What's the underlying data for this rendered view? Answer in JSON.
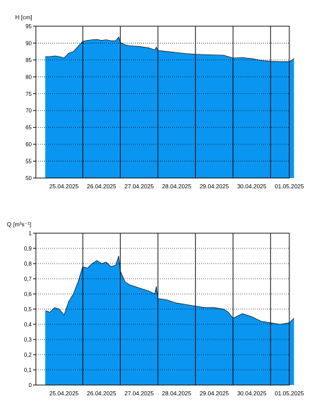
{
  "chart_data": [
    {
      "type": "area",
      "ylabel": "H [cm]",
      "ylim": [
        50,
        95
      ],
      "yticks": [
        50,
        55,
        60,
        65,
        70,
        75,
        80,
        85,
        90,
        95
      ],
      "ytick_labels": [
        "50",
        "55",
        "60",
        "65",
        "70",
        "75",
        "80",
        "85",
        "90",
        "95"
      ],
      "xlim": [
        "2025-04-24T18:00",
        "2025-05-01T12:00"
      ],
      "day_lines": [
        "2025-04-26",
        "2025-04-27",
        "2025-04-28",
        "2025-04-29",
        "2025-04-30",
        "2025-05-01"
      ],
      "xtick_labels": [
        "25.04.2025",
        "26.04.2025",
        "27.04.2025",
        "28.04.2025",
        "29.04.2025",
        "30.04.2025",
        "01.05.2025"
      ],
      "xtick_positions": [
        "2025-04-25T12:00",
        "2025-04-26T12:00",
        "2025-04-27T12:00",
        "2025-04-28T12:00",
        "2025-04-29T12:00",
        "2025-04-30T12:00",
        "2025-05-01T12:00"
      ],
      "grid": "horizontal dotted",
      "fill_color": "#0a96f0",
      "series": [
        {
          "x": [
            "2025-04-25T00:00",
            "2025-04-25T03:00",
            "2025-04-25T06:00",
            "2025-04-25T09:00",
            "2025-04-25T12:00",
            "2025-04-25T15:00",
            "2025-04-25T18:00",
            "2025-04-25T21:00",
            "2025-04-26T00:00",
            "2025-04-26T03:00",
            "2025-04-26T06:00",
            "2025-04-26T09:00",
            "2025-04-26T12:00",
            "2025-04-26T15:00",
            "2025-04-26T18:00",
            "2025-04-26T21:00",
            "2025-04-26T23:00",
            "2025-04-27T00:00",
            "2025-04-27T03:00",
            "2025-04-27T06:00",
            "2025-04-27T12:00",
            "2025-04-27T18:00",
            "2025-04-27T22:00",
            "2025-04-27T23:00",
            "2025-04-28T00:00",
            "2025-04-28T06:00",
            "2025-04-28T12:00",
            "2025-04-28T18:00",
            "2025-04-29T00:00",
            "2025-04-29T06:00",
            "2025-04-29T12:00",
            "2025-04-29T18:00",
            "2025-04-30T00:00",
            "2025-04-30T06:00",
            "2025-04-30T12:00",
            "2025-04-30T18:00",
            "2025-05-01T00:00",
            "2025-05-01T06:00",
            "2025-05-01T12:00",
            "2025-05-01T15:00"
          ],
          "y": [
            86.0,
            86.0,
            86.2,
            86.0,
            85.6,
            87.0,
            87.5,
            89.0,
            90.5,
            90.8,
            91.0,
            91.1,
            90.8,
            91.0,
            90.7,
            90.7,
            91.8,
            90.2,
            89.5,
            89.2,
            89.0,
            88.6,
            88.0,
            88.8,
            87.8,
            87.5,
            87.2,
            86.9,
            86.7,
            86.6,
            86.5,
            86.4,
            85.6,
            85.7,
            85.4,
            84.9,
            84.6,
            84.5,
            84.5,
            85.4
          ]
        }
      ]
    },
    {
      "type": "area",
      "ylabel": "Q [m³s⁻¹]",
      "ylim": [
        0,
        1
      ],
      "yticks": [
        0,
        0.1,
        0.2,
        0.3,
        0.4,
        0.5,
        0.6,
        0.7,
        0.8,
        0.9,
        1
      ],
      "ytick_labels": [
        "0",
        "0,1",
        "0,2",
        "0,3",
        "0,4",
        "0,5",
        "0,6",
        "0,7",
        "0,8",
        "0,9",
        "1"
      ],
      "xlim": [
        "2025-04-24T18:00",
        "2025-05-01T12:00"
      ],
      "day_lines": [
        "2025-04-26",
        "2025-04-27",
        "2025-04-28",
        "2025-04-29",
        "2025-04-30",
        "2025-05-01"
      ],
      "xtick_labels": [
        "25.04.2025",
        "26.04.2025",
        "27.04.2025",
        "28.04.2025",
        "29.04.2025",
        "30.04.2025",
        "01.05.2025"
      ],
      "xtick_positions": [
        "2025-04-25T12:00",
        "2025-04-26T12:00",
        "2025-04-27T12:00",
        "2025-04-28T12:00",
        "2025-04-29T12:00",
        "2025-04-30T12:00",
        "2025-05-01T12:00"
      ],
      "grid": "horizontal dotted",
      "fill_color": "#0a96f0",
      "series": [
        {
          "x": [
            "2025-04-25T00:00",
            "2025-04-25T03:00",
            "2025-04-25T06:00",
            "2025-04-25T09:00",
            "2025-04-25T12:00",
            "2025-04-25T15:00",
            "2025-04-25T18:00",
            "2025-04-25T21:00",
            "2025-04-26T00:00",
            "2025-04-26T03:00",
            "2025-04-26T06:00",
            "2025-04-26T09:00",
            "2025-04-26T12:00",
            "2025-04-26T15:00",
            "2025-04-26T18:00",
            "2025-04-26T21:00",
            "2025-04-26T23:00",
            "2025-04-27T00:00",
            "2025-04-27T03:00",
            "2025-04-27T06:00",
            "2025-04-27T12:00",
            "2025-04-27T18:00",
            "2025-04-27T22:00",
            "2025-04-27T23:00",
            "2025-04-28T00:00",
            "2025-04-28T06:00",
            "2025-04-28T12:00",
            "2025-04-28T18:00",
            "2025-04-29T00:00",
            "2025-04-29T06:00",
            "2025-04-29T12:00",
            "2025-04-29T18:00",
            "2025-04-29T21:00",
            "2025-04-30T00:00",
            "2025-04-30T06:00",
            "2025-04-30T12:00",
            "2025-04-30T18:00",
            "2025-05-01T00:00",
            "2025-05-01T06:00",
            "2025-05-01T12:00",
            "2025-05-01T15:00"
          ],
          "y": [
            0.49,
            0.48,
            0.51,
            0.5,
            0.46,
            0.55,
            0.6,
            0.68,
            0.78,
            0.77,
            0.8,
            0.82,
            0.8,
            0.81,
            0.78,
            0.79,
            0.85,
            0.75,
            0.68,
            0.66,
            0.64,
            0.62,
            0.6,
            0.65,
            0.57,
            0.56,
            0.54,
            0.53,
            0.52,
            0.51,
            0.51,
            0.5,
            0.48,
            0.44,
            0.47,
            0.45,
            0.42,
            0.41,
            0.4,
            0.41,
            0.44
          ]
        }
      ]
    }
  ]
}
